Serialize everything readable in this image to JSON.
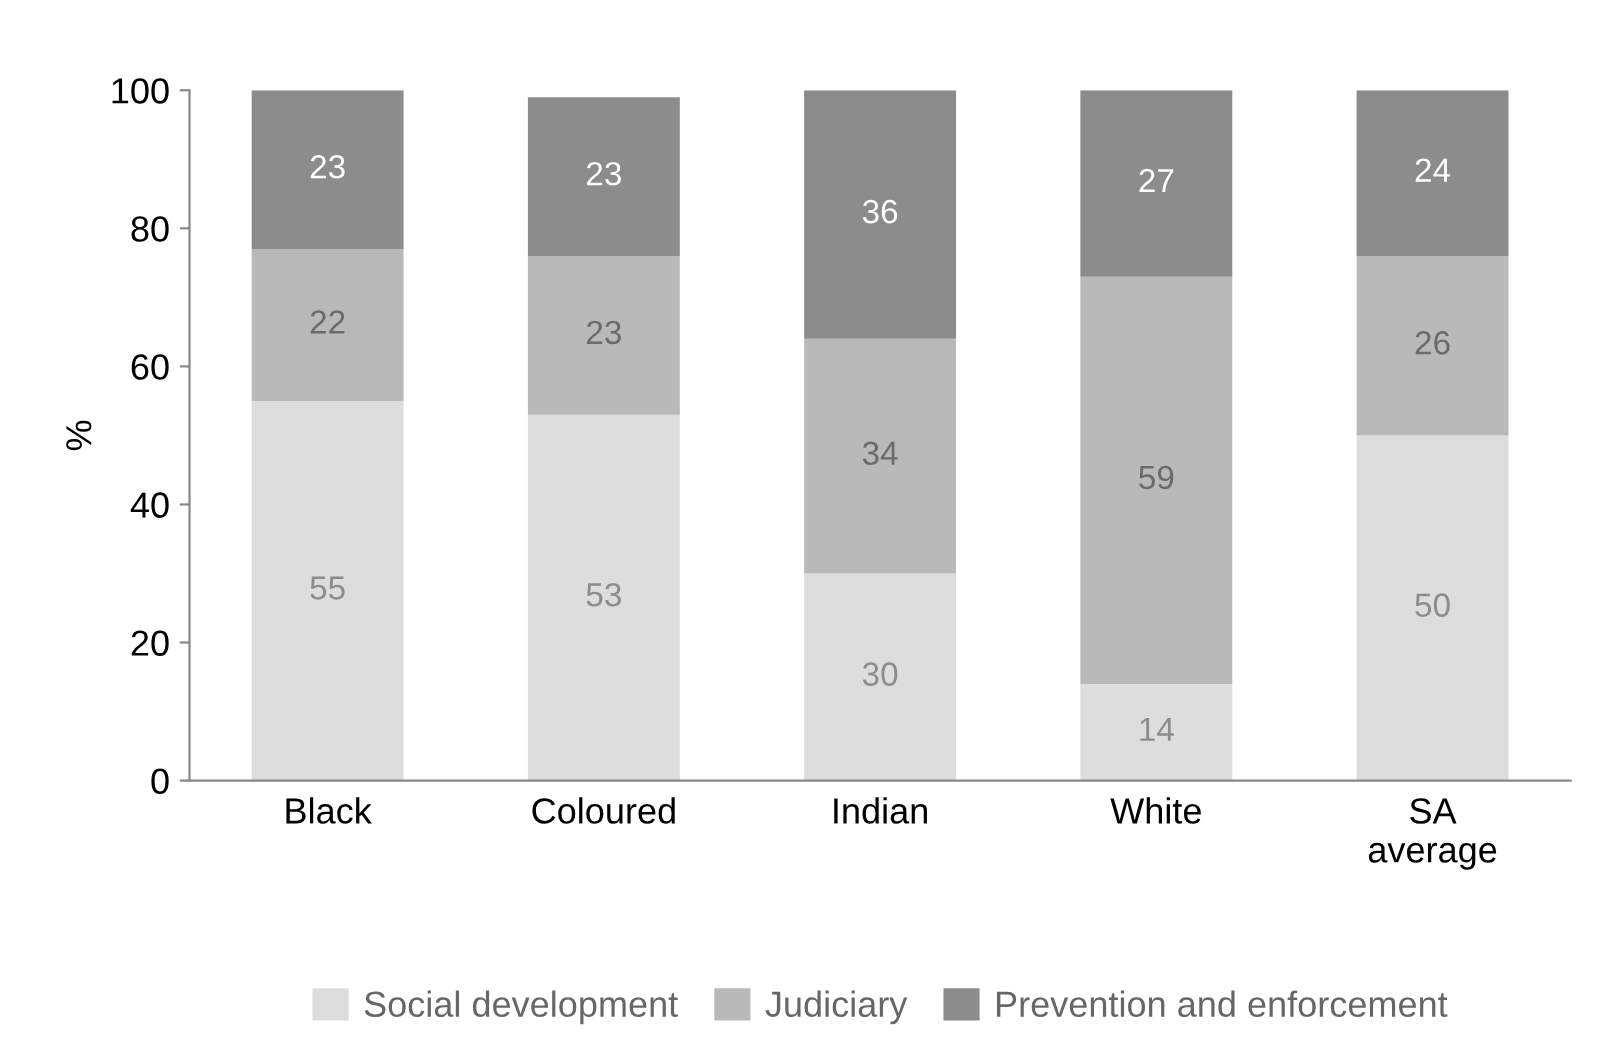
{
  "chart_data": {
    "type": "bar",
    "stacked": true,
    "ylabel": "%",
    "categories": [
      "Black",
      "Coloured",
      "Indian",
      "White",
      "SA average"
    ],
    "series": [
      {
        "name": "Social development",
        "color": "#dddddd",
        "values": [
          55,
          53,
          30,
          14,
          50
        ]
      },
      {
        "name": "Judiciary",
        "color": "#b9b9b9",
        "values": [
          22,
          23,
          34,
          59,
          26
        ]
      },
      {
        "name": "Prevention and enforcement",
        "color": "#8c8c8c",
        "values": [
          23,
          23,
          36,
          27,
          24
        ]
      }
    ],
    "ylim": [
      0,
      100
    ],
    "yticks": [
      0,
      20,
      40,
      60,
      80,
      100
    ],
    "grid": false,
    "legend": "bottom",
    "data_labels": true
  }
}
